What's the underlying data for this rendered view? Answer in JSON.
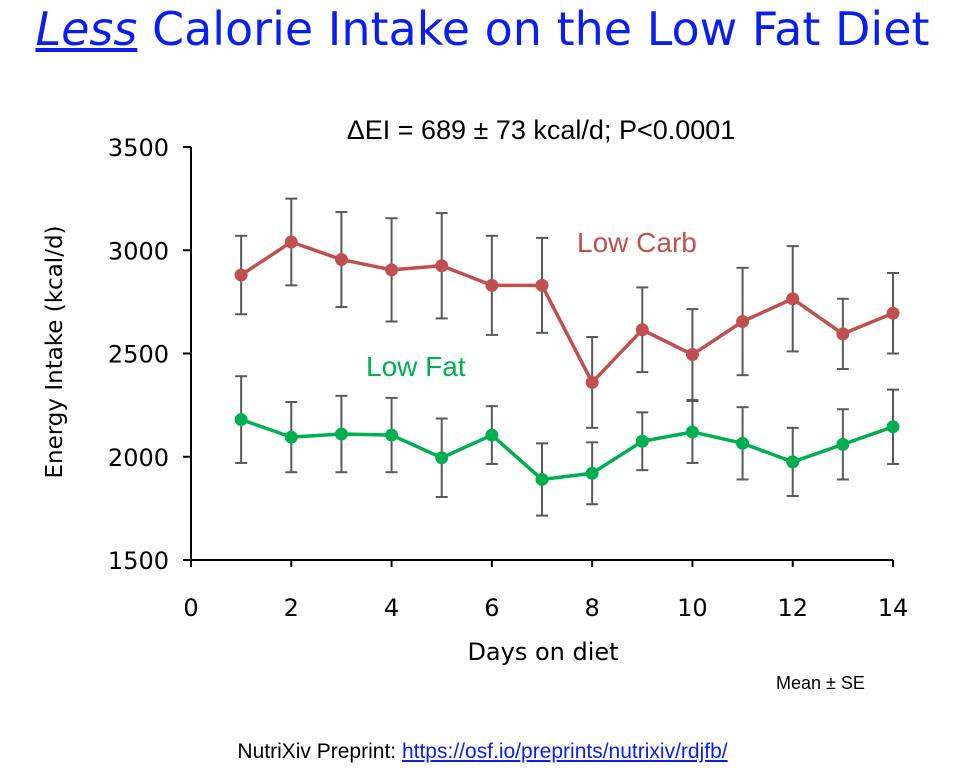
{
  "slide": {
    "title_emphasis": "Less",
    "title_rest": " Calorie Intake on the Low Fat Diet",
    "note": "Mean ± SE",
    "footer_prefix": "NutriXiv Preprint: ",
    "footer_link": "https://osf.io/preprints/nutrixiv/rdjfb/",
    "title_color": "#0b1ef0"
  },
  "chart_data": {
    "type": "line",
    "title": "ΔEI = 689 ± 73 kcal/d; P<0.0001",
    "xlabel": "Days on diet",
    "ylabel": "Energy Intake (kcal/d)",
    "xlim": [
      0,
      14
    ],
    "ylim": [
      1500,
      3500
    ],
    "x_ticks": [
      0,
      2,
      4,
      6,
      8,
      10,
      12,
      14
    ],
    "y_ticks": [
      1500,
      2000,
      2500,
      3000,
      3500
    ],
    "grid": false,
    "x": [
      1,
      2,
      3,
      4,
      5,
      6,
      7,
      8,
      9,
      10,
      11,
      12,
      13,
      14
    ],
    "series": [
      {
        "name": "Low Carb",
        "color": "#c0504d",
        "values": [
          2880,
          3040,
          2955,
          2905,
          2925,
          2830,
          2830,
          2360,
          2615,
          2495,
          2655,
          2765,
          2595,
          2695
        ],
        "errors": [
          190,
          210,
          230,
          250,
          255,
          240,
          230,
          220,
          205,
          220,
          260,
          255,
          170,
          195
        ]
      },
      {
        "name": "Low Fat",
        "color": "#00b050",
        "values": [
          2180,
          2095,
          2110,
          2105,
          1995,
          2105,
          1890,
          1920,
          2075,
          2120,
          2065,
          1975,
          2060,
          2145
        ],
        "errors": [
          210,
          170,
          185,
          180,
          190,
          140,
          175,
          150,
          140,
          150,
          175,
          165,
          170,
          180
        ]
      }
    ]
  }
}
